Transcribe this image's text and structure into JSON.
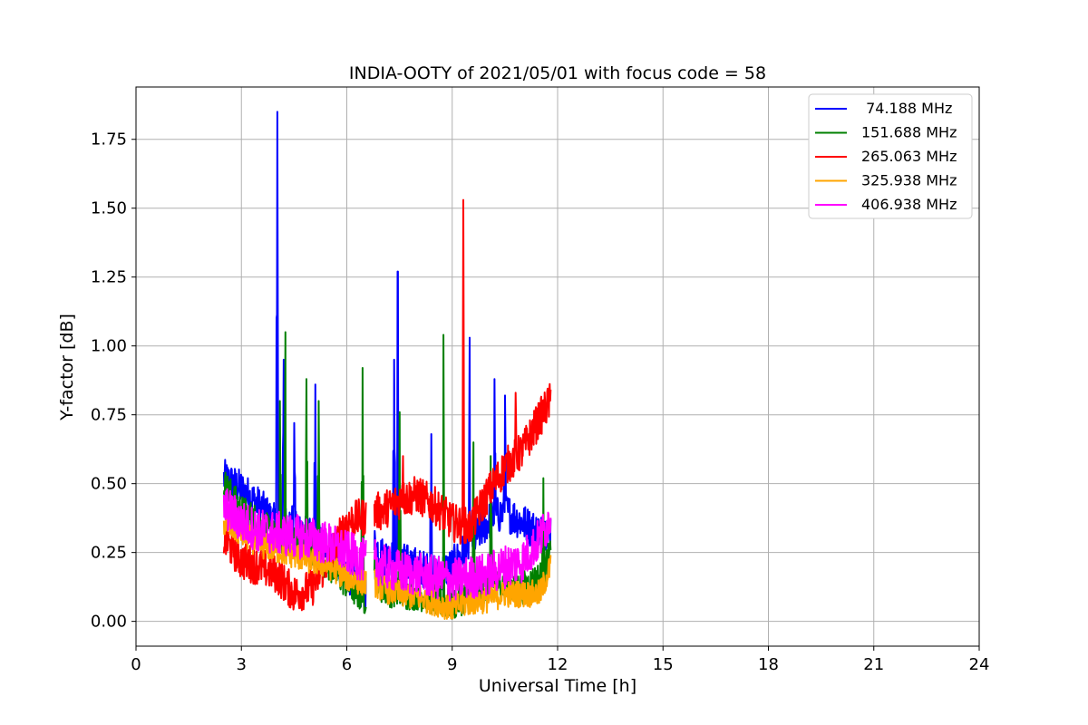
{
  "chart_data": {
    "type": "line",
    "title": "INDIA-OOTY of 2021/05/01 with focus code = 58",
    "xlabel": "Universal Time [h]",
    "ylabel": "Y-factor [dB]",
    "xlim": [
      0,
      24
    ],
    "ylim": [
      -0.09,
      1.94
    ],
    "xticks": [
      0,
      3,
      6,
      9,
      12,
      15,
      18,
      21,
      24
    ],
    "xtick_labels": [
      "0",
      "3",
      "6",
      "9",
      "12",
      "15",
      "18",
      "21",
      "24"
    ],
    "yticks": [
      0.0,
      0.25,
      0.5,
      0.75,
      1.0,
      1.25,
      1.5,
      1.75
    ],
    "ytick_labels": [
      "0.00",
      "0.25",
      "0.50",
      "0.75",
      "1.00",
      "1.25",
      "1.50",
      "1.75"
    ],
    "grid": true,
    "legend_position": "top-right",
    "series": [
      {
        "name": " 74.188 MHz",
        "color": "#0000ff",
        "x": [
          2.5,
          3.0,
          3.5,
          4.0,
          4.5,
          5.0,
          5.5,
          6.0,
          6.5,
          6.8,
          7.0,
          7.5,
          8.0,
          8.5,
          9.0,
          9.5,
          10.0,
          10.5,
          11.0,
          11.5,
          11.8
        ],
        "y": [
          0.52,
          0.48,
          0.42,
          0.35,
          0.36,
          0.3,
          0.27,
          0.18,
          0.1,
          0.28,
          0.24,
          0.22,
          0.2,
          0.17,
          0.2,
          0.28,
          0.36,
          0.4,
          0.36,
          0.32,
          0.34
        ],
        "spikes": [
          [
            4.02,
            1.85
          ],
          [
            4.2,
            0.95
          ],
          [
            4.5,
            0.72
          ],
          [
            5.1,
            0.86
          ],
          [
            7.35,
            0.95
          ],
          [
            7.45,
            1.27
          ],
          [
            8.4,
            0.68
          ],
          [
            9.5,
            1.03
          ],
          [
            10.2,
            0.88
          ],
          [
            10.5,
            0.82
          ]
        ]
      },
      {
        "name": "151.688 MHz",
        "color": "#008000",
        "x": [
          2.5,
          3.0,
          3.5,
          4.0,
          4.5,
          5.0,
          5.5,
          6.0,
          6.5,
          6.8,
          7.0,
          7.5,
          8.0,
          8.5,
          9.0,
          9.5,
          10.0,
          10.5,
          11.0,
          11.5,
          11.8
        ],
        "y": [
          0.5,
          0.4,
          0.36,
          0.3,
          0.3,
          0.27,
          0.2,
          0.14,
          0.08,
          0.2,
          0.12,
          0.1,
          0.1,
          0.08,
          0.06,
          0.1,
          0.13,
          0.14,
          0.12,
          0.16,
          0.24
        ],
        "spikes": [
          [
            4.1,
            0.8
          ],
          [
            4.25,
            1.05
          ],
          [
            4.85,
            0.88
          ],
          [
            5.2,
            0.8
          ],
          [
            6.45,
            0.92
          ],
          [
            7.5,
            0.76
          ],
          [
            8.75,
            1.04
          ],
          [
            9.6,
            0.65
          ],
          [
            10.1,
            0.6
          ],
          [
            11.6,
            0.52
          ]
        ]
      },
      {
        "name": "265.063 MHz",
        "color": "#ff0000",
        "x": [
          2.5,
          3.0,
          3.5,
          4.0,
          4.5,
          5.0,
          5.5,
          6.0,
          6.5,
          6.8,
          7.0,
          7.5,
          8.0,
          8.5,
          9.0,
          9.5,
          10.0,
          10.5,
          11.0,
          11.5,
          11.8
        ],
        "y": [
          0.3,
          0.22,
          0.2,
          0.17,
          0.1,
          0.12,
          0.23,
          0.36,
          0.38,
          0.4,
          0.4,
          0.44,
          0.46,
          0.42,
          0.36,
          0.34,
          0.46,
          0.56,
          0.62,
          0.74,
          0.8
        ],
        "spikes": [
          [
            9.32,
            1.53
          ],
          [
            7.6,
            0.6
          ],
          [
            10.8,
            0.83
          ]
        ]
      },
      {
        "name": "325.938 MHz",
        "color": "#ffa500",
        "x": [
          2.5,
          3.0,
          3.5,
          4.0,
          4.5,
          5.0,
          5.5,
          6.0,
          6.5,
          6.8,
          7.0,
          7.5,
          8.0,
          8.5,
          9.0,
          9.5,
          10.0,
          10.5,
          11.0,
          11.5,
          11.8
        ],
        "y": [
          0.36,
          0.32,
          0.28,
          0.26,
          0.24,
          0.22,
          0.2,
          0.16,
          0.14,
          0.14,
          0.12,
          0.1,
          0.09,
          0.07,
          0.05,
          0.07,
          0.08,
          0.1,
          0.1,
          0.1,
          0.2
        ],
        "spikes": []
      },
      {
        "name": "406.938 MHz",
        "color": "#ff00ff",
        "x": [
          2.5,
          3.0,
          3.5,
          4.0,
          4.5,
          5.0,
          5.5,
          6.0,
          6.5,
          6.8,
          7.0,
          7.5,
          8.0,
          8.5,
          9.0,
          9.5,
          10.0,
          10.5,
          11.0,
          11.5,
          11.8
        ],
        "y": [
          0.42,
          0.36,
          0.33,
          0.32,
          0.31,
          0.3,
          0.28,
          0.25,
          0.22,
          0.22,
          0.2,
          0.18,
          0.17,
          0.16,
          0.15,
          0.16,
          0.17,
          0.2,
          0.22,
          0.3,
          0.38
        ],
        "spikes": []
      }
    ]
  }
}
